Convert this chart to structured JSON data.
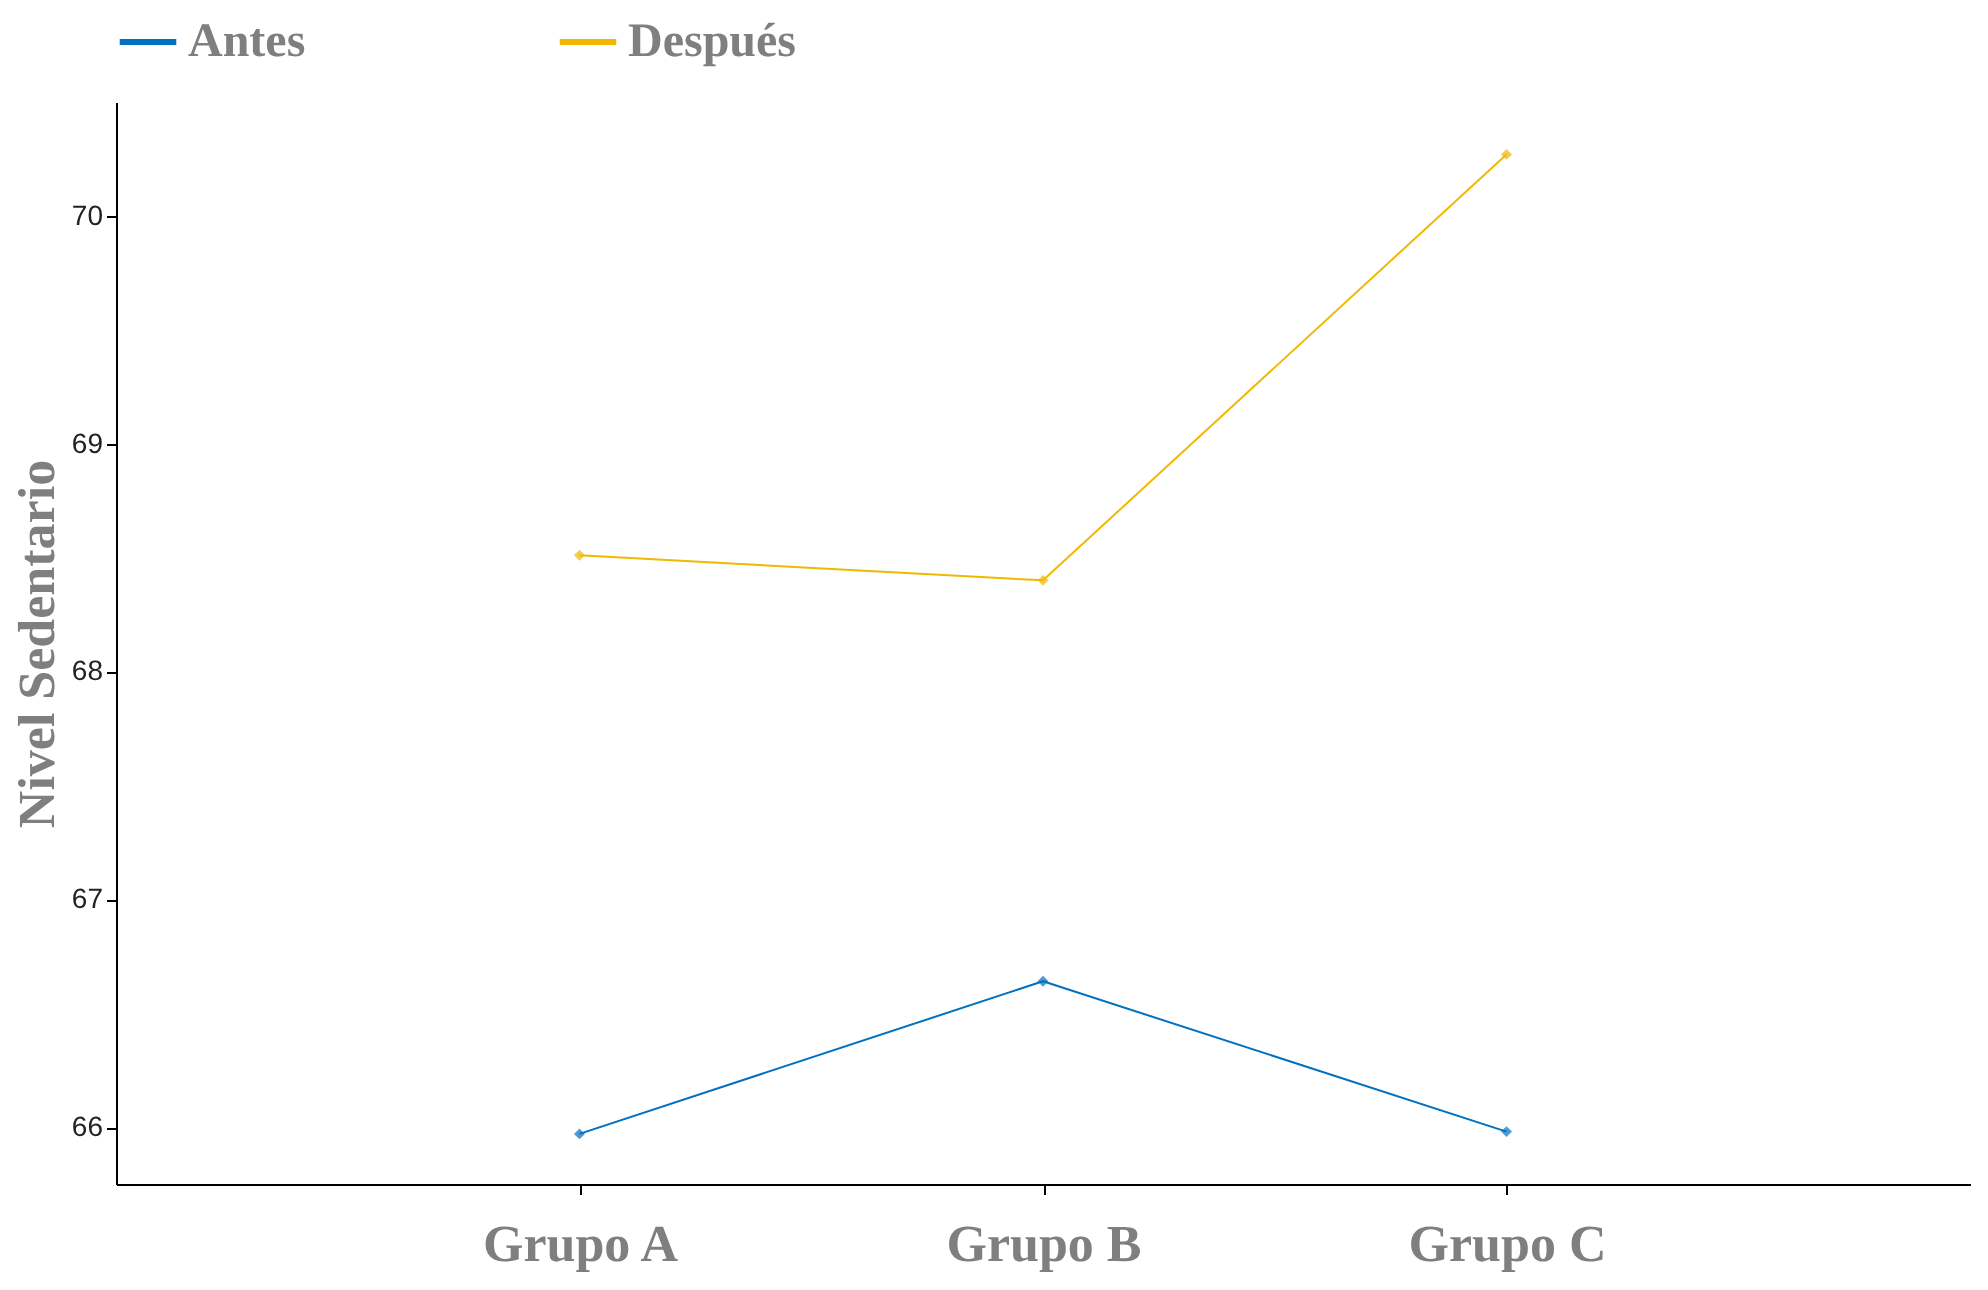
{
  "chart_data": {
    "type": "line",
    "ylabel": "Nivel Sedentario",
    "categories": [
      "Grupo A",
      "Grupo B",
      "Grupo C"
    ],
    "series": [
      {
        "name": "Antes",
        "color": "#0070c0",
        "values": [
          65.97,
          66.64,
          65.98
        ]
      },
      {
        "name": "Después",
        "color": "#f0b800",
        "values": [
          68.51,
          68.4,
          70.27
        ]
      }
    ],
    "ylim": [
      65.75,
      70.5
    ],
    "yticks": [
      66,
      67,
      68,
      69,
      70
    ],
    "grid": false,
    "legend": "top",
    "marker": "diamond",
    "line_style": "solid"
  }
}
